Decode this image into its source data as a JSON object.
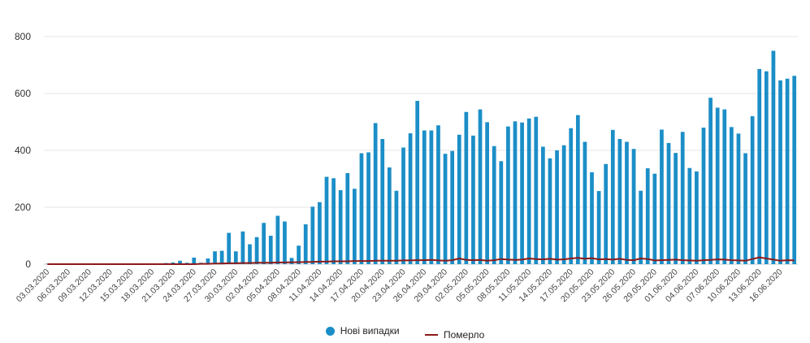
{
  "chart_data": {
    "type": "bar",
    "title": "",
    "xlabel": "",
    "ylabel": "",
    "ylim": [
      0,
      800
    ],
    "y_ticks": [
      0,
      200,
      400,
      600,
      800
    ],
    "grid": true,
    "legend_position": "bottom-center",
    "x_start": "03.03.2020",
    "x_tick_labels": [
      "03.03.2020",
      "06.03.2020",
      "09.03.2020",
      "12.03.2020",
      "15.03.2020",
      "18.03.2020",
      "21.03.2020",
      "24.03.2020",
      "27.03.2020",
      "30.03.2020",
      "02.04.2020",
      "05.04.2020",
      "08.04.2020",
      "11.04.2020",
      "14.04.2020",
      "17.04.2020",
      "20.04.2020",
      "23.04.2020",
      "26.04.2020",
      "29.04.2020",
      "02.05.2020",
      "05.05.2020",
      "08.05.2020",
      "11.05.2020",
      "14.05.2020",
      "17.05.2020",
      "20.05.2020",
      "23.05.2020",
      "26.05.2020",
      "29.05.2020",
      "01.06.2020",
      "04.06.2020",
      "07.06.2020",
      "10.06.2020",
      "13.06.2020",
      "16.06.2020"
    ],
    "series": [
      {
        "name": "Нові випадки",
        "kind": "bar",
        "color": "#1b8ec7",
        "values": [
          1,
          0,
          0,
          0,
          0,
          0,
          0,
          0,
          0,
          0,
          0,
          0,
          0,
          0,
          0,
          0,
          0,
          4,
          6,
          12,
          5,
          23,
          5,
          20,
          45,
          47,
          110,
          45,
          115,
          70,
          95,
          145,
          100,
          170,
          150,
          22,
          65,
          140,
          202,
          218,
          307,
          302,
          260,
          320,
          265,
          390,
          393,
          496,
          440,
          340,
          258,
          410,
          460,
          574,
          470,
          470,
          488,
          388,
          398,
          455,
          535,
          452,
          544,
          499,
          415,
          362,
          484,
          502,
          498,
          512,
          518,
          413,
          372,
          400,
          418,
          478,
          524,
          430,
          323,
          257,
          352,
          472,
          440,
          430,
          405,
          258,
          337,
          318,
          473,
          426,
          391,
          465,
          338,
          326,
          480,
          585,
          550,
          544,
          482,
          459,
          390,
          520,
          686,
          678,
          750,
          646,
          652,
          662
        ]
      },
      {
        "name": "Померло",
        "kind": "line",
        "color": "#8b1a1a",
        "values": [
          0,
          0,
          0,
          0,
          0,
          0,
          0,
          0,
          0,
          0,
          0,
          0,
          0,
          0,
          0,
          0,
          0,
          0,
          0,
          0,
          0,
          0,
          1,
          1,
          2,
          2,
          3,
          3,
          4,
          4,
          5,
          5,
          5,
          6,
          6,
          7,
          7,
          8,
          8,
          9,
          9,
          10,
          10,
          10,
          11,
          11,
          11,
          12,
          12,
          12,
          12,
          13,
          13,
          14,
          14,
          15,
          13,
          12,
          14,
          20,
          15,
          14,
          15,
          12,
          14,
          18,
          16,
          15,
          16,
          20,
          18,
          17,
          19,
          16,
          17,
          20,
          22,
          19,
          21,
          17,
          18,
          16,
          19,
          15,
          14,
          20,
          18,
          13,
          14,
          15,
          16,
          14,
          13,
          12,
          14,
          15,
          17,
          16,
          14,
          13,
          12,
          18,
          24,
          20,
          16,
          12,
          14,
          13
        ]
      }
    ]
  }
}
